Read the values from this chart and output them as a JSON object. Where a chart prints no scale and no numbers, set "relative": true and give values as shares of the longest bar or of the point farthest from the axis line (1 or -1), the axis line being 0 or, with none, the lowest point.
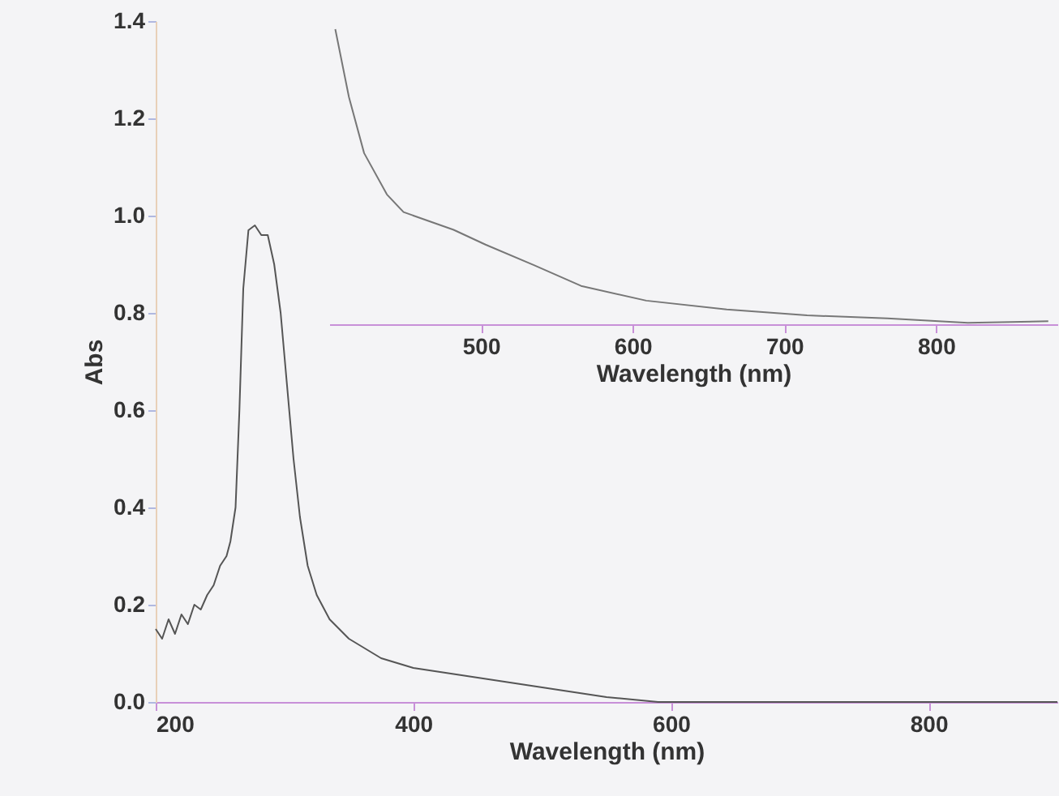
{
  "chart_data": [
    {
      "type": "line",
      "xlabel": "Wavelength (nm)",
      "ylabel": "Abs",
      "xlim": [
        200,
        900
      ],
      "ylim": [
        0,
        1.4
      ],
      "xticks": [
        200,
        400,
        600,
        800
      ],
      "yticks": [
        {
          "value": 0,
          "label": "0.0"
        },
        0.2,
        0.4,
        0.6,
        0.8,
        {
          "value": 1,
          "label": "1.0"
        },
        1.2,
        1.4
      ],
      "grid": false,
      "series": [
        {
          "color": "#555555",
          "x": [
            200,
            205,
            210,
            215,
            220,
            225,
            230,
            235,
            240,
            245,
            250,
            255,
            258,
            262,
            265,
            268,
            272,
            277,
            282,
            287,
            292,
            297,
            302,
            307,
            312,
            318,
            325,
            335,
            350,
            375,
            400,
            450,
            500,
            550,
            590,
            650,
            750,
            900
          ],
          "values": [
            0.15,
            0.13,
            0.17,
            0.14,
            0.18,
            0.16,
            0.2,
            0.19,
            0.22,
            0.24,
            0.28,
            0.3,
            0.33,
            0.4,
            0.6,
            0.85,
            0.97,
            0.98,
            0.96,
            0.96,
            0.9,
            0.8,
            0.65,
            0.5,
            0.38,
            0.28,
            0.22,
            0.17,
            0.13,
            0.09,
            0.07,
            0.05,
            0.03,
            0.01,
            0.0,
            0.0,
            0.0,
            0.0
          ]
        }
      ]
    },
    {
      "type": "line",
      "xlabel": "Wavelength (nm)",
      "relative": true,
      "tick_labels": "x",
      "xlim": [
        400,
        880
      ],
      "xticks": [
        500,
        600,
        700,
        800
      ],
      "grid": false,
      "series": [
        {
          "color": "#777777",
          "x": [
            404,
            413,
            423,
            438,
            449,
            482,
            503,
            535,
            566,
            609,
            662,
            715,
            768,
            821,
            874
          ],
          "values": [
            1.0,
            0.77,
            0.58,
            0.44,
            0.38,
            0.32,
            0.27,
            0.2,
            0.13,
            0.08,
            0.05,
            0.03,
            0.02,
            0.005,
            0.01
          ]
        }
      ]
    }
  ]
}
